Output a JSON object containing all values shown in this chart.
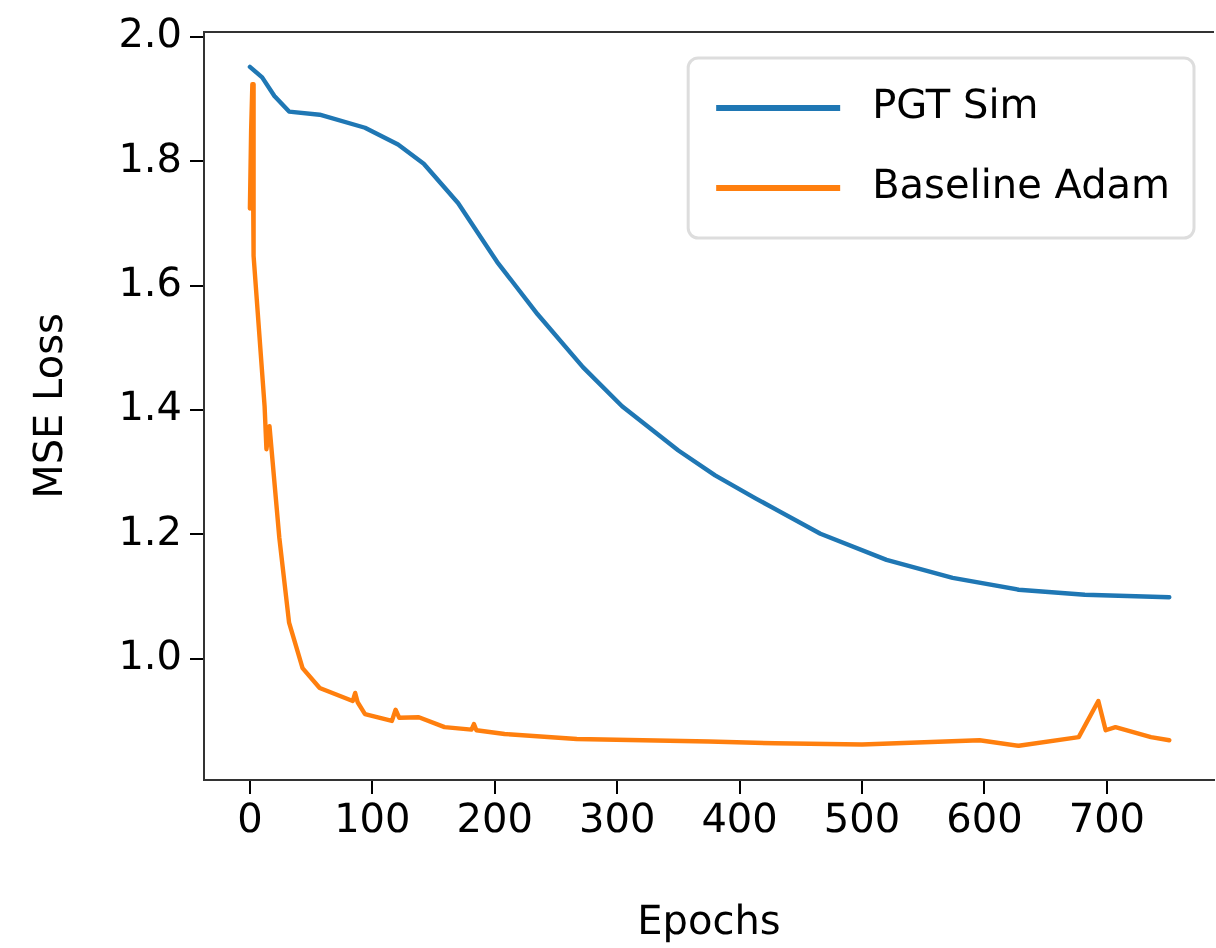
{
  "chart_data": {
    "type": "line",
    "xlabel": "Epochs",
    "ylabel": "MSE Loss",
    "xlim": [
      -37.5,
      787.5
    ],
    "xticks": [
      0,
      100,
      200,
      300,
      400,
      500,
      600,
      700
    ],
    "ylim": [
      0.805,
      2.008
    ],
    "yticks": [
      {
        "value": 1.0,
        "label": "1.0"
      },
      1.2,
      1.4,
      1.6,
      1.8,
      {
        "value": 2.0,
        "label": "2.0"
      }
    ],
    "grid": false,
    "legend": "top right",
    "marker": "none",
    "line_style": "solid",
    "series": [
      {
        "name": "PGT Sim",
        "color": "#1f77b4",
        "x": [
          0,
          10,
          20,
          32,
          57,
          94,
          121,
          142,
          170,
          202,
          235,
          272,
          304,
          350,
          380,
          413,
          466,
          520,
          574,
          628,
          682,
          751
        ],
        "values": [
          1.952,
          1.935,
          1.905,
          1.88,
          1.875,
          1.854,
          1.827,
          1.796,
          1.733,
          1.638,
          1.554,
          1.469,
          1.406,
          1.335,
          1.295,
          1.258,
          1.201,
          1.159,
          1.13,
          1.111,
          1.103,
          1.099
        ]
      },
      {
        "name": "Baseline Adam",
        "color": "#ff7f0e",
        "x": [
          0,
          1,
          2,
          3,
          12,
          13,
          13.5,
          16,
          24,
          32,
          43,
          57,
          84,
          86,
          88,
          94,
          116,
          119,
          122,
          138,
          159,
          181,
          183,
          185,
          208,
          267,
          375,
          429,
          500,
          596,
          628,
          677,
          693,
          699,
          707,
          736,
          751
        ],
        "values": [
          1.724,
          1.85,
          1.924,
          1.648,
          1.406,
          1.406,
          1.337,
          1.374,
          1.195,
          1.058,
          0.985,
          0.953,
          0.932,
          0.945,
          0.93,
          0.911,
          0.9,
          0.918,
          0.905,
          0.906,
          0.89,
          0.886,
          0.895,
          0.885,
          0.879,
          0.871,
          0.867,
          0.864,
          0.862,
          0.869,
          0.86,
          0.874,
          0.932,
          0.885,
          0.89,
          0.874,
          0.869
        ]
      }
    ]
  }
}
